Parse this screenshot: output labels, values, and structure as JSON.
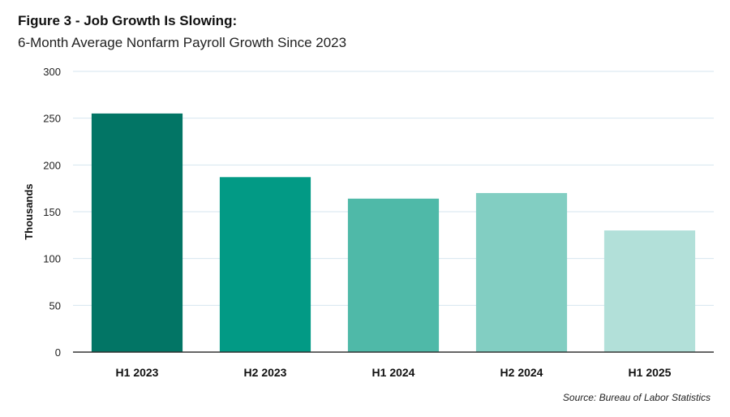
{
  "chart_data": {
    "type": "bar",
    "title": "Figure 3 - Job Growth Is Slowing:",
    "subtitle": "6-Month Average Nonfarm Payroll Growth Since 2023",
    "ylabel": "Thousands",
    "xlabel": "",
    "categories": [
      "H1 2023",
      "H2 2023",
      "H1 2024",
      "H2 2024",
      "H1 2025"
    ],
    "values": [
      255,
      187,
      164,
      170,
      130
    ],
    "ylim": [
      0,
      300
    ],
    "yticks": [
      0,
      50,
      100,
      150,
      200,
      250,
      300
    ],
    "grid": true,
    "bar_colors": [
      "#027565",
      "#029a85",
      "#4fb9a8",
      "#82cec2",
      "#b2e0d9"
    ],
    "source": "Source: Bureau of Labor Statistics"
  }
}
